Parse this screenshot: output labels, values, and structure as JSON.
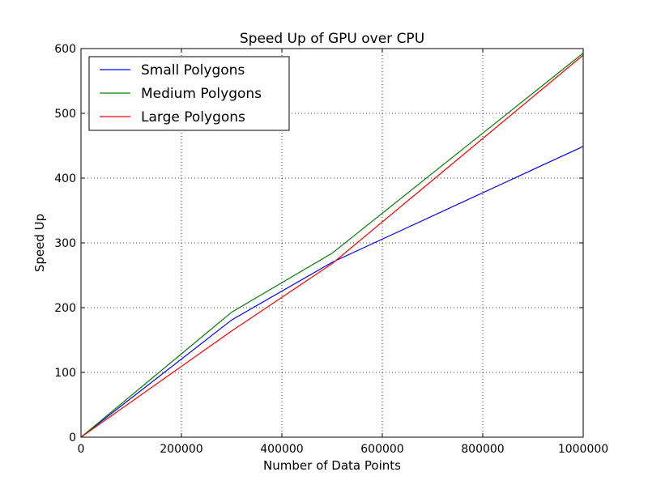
{
  "chart_data": {
    "type": "line",
    "title": "Speed Up of GPU over CPU",
    "xlabel": "Number of Data Points",
    "ylabel": "Speed Up",
    "xlim": [
      0,
      1000000
    ],
    "ylim": [
      0,
      600
    ],
    "xticks": [
      0,
      200000,
      400000,
      600000,
      800000,
      1000000
    ],
    "yticks": [
      0,
      100,
      200,
      300,
      400,
      500,
      600
    ],
    "grid": true,
    "legend_position": "top-left",
    "series": [
      {
        "name": "Small Polygons",
        "color": "#0000ff",
        "x": [
          0,
          300000,
          500000,
          1000000
        ],
        "y": [
          0,
          181,
          270,
          449
        ]
      },
      {
        "name": "Medium Polygons",
        "color": "#008000",
        "x": [
          0,
          300000,
          500000,
          1000000
        ],
        "y": [
          0,
          193,
          284,
          593
        ]
      },
      {
        "name": "Large Polygons",
        "color": "#ff0000",
        "x": [
          0,
          300000,
          500000,
          1000000
        ],
        "y": [
          0,
          164,
          268,
          590
        ]
      }
    ]
  }
}
